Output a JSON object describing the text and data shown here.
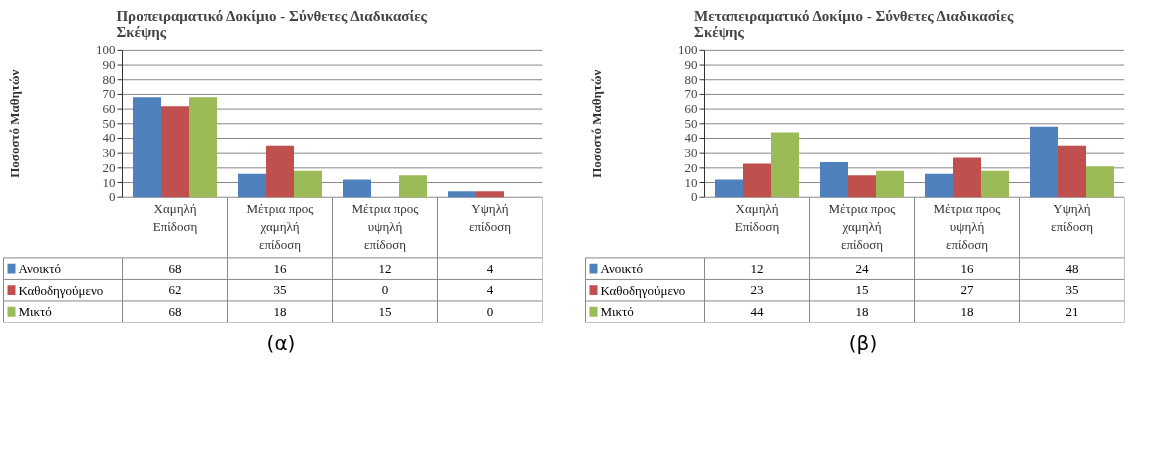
{
  "chart_data": [
    {
      "type": "bar",
      "title": "Προπειραματικό Δοκίμιο - Σύνθετες Διαδικασίες Σκέψης",
      "ylabel": "Ποσοστό Μαθητών",
      "categories": [
        "Χαμηλή Επίδοση",
        "Μέτρια προς χαμηλή επίδοση",
        "Μέτρια προς υψηλή επίδοση",
        "Υψηλή επίδοση"
      ],
      "series": [
        {
          "name": "Ανοικτό",
          "color": "#4f81bd",
          "values": [
            68,
            16,
            12,
            4
          ]
        },
        {
          "name": "Καθοδηγούμενο",
          "color": "#c0504d",
          "values": [
            62,
            35,
            0,
            4
          ]
        },
        {
          "name": "Μικτό",
          "color": "#9bbb59",
          "values": [
            68,
            18,
            15,
            0
          ]
        }
      ],
      "ylim": [
        0,
        100
      ],
      "yticks": [
        0,
        10,
        20,
        30,
        40,
        50,
        60,
        70,
        80,
        90,
        100
      ],
      "grid": "y",
      "legend": "bottom",
      "data_labels": true,
      "annotations": [
        "(α)"
      ]
    },
    {
      "type": "bar",
      "title": "Μεταπειραματικό Δοκίμιο - Σύνθετες Διαδικασίες Σκέψης",
      "ylabel": "Ποσοστό Μαθητών",
      "categories": [
        "Χαμηλή Επίδοση",
        "Μέτρια προς χαμηλή επίδοση",
        "Μέτρια προς υψηλή επίδοση",
        "Υψηλή επίδοση"
      ],
      "series": [
        {
          "name": "Ανοικτό",
          "color": "#4f81bd",
          "values": [
            12,
            24,
            16,
            48
          ]
        },
        {
          "name": "Καθοδηγούμενο",
          "color": "#c0504d",
          "values": [
            23,
            15,
            27,
            35
          ]
        },
        {
          "name": "Μικτό",
          "color": "#9bbb59",
          "values": [
            44,
            18,
            18,
            21
          ]
        }
      ],
      "ylim": [
        0,
        100
      ],
      "yticks": [
        0,
        10,
        20,
        30,
        40,
        50,
        60,
        70,
        80,
        90,
        100
      ],
      "grid": "y",
      "legend": "bottom",
      "data_labels": true,
      "annotations": [
        "(β)"
      ]
    }
  ]
}
